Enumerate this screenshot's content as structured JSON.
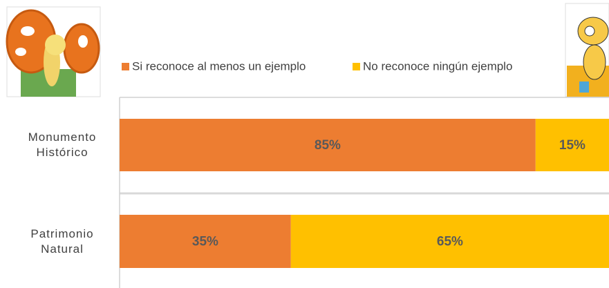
{
  "chart_data": {
    "type": "bar",
    "orientation": "horizontal",
    "stacked": true,
    "categories": [
      "Monumento Histórico",
      "Patrimonio Natural"
    ],
    "series": [
      {
        "name": "Si reconoce al menos un ejemplo",
        "color": "#ED7D31",
        "values": [
          85,
          35
        ],
        "value_labels": [
          "85%",
          "35%"
        ]
      },
      {
        "name": "No reconoce ningún ejemplo",
        "color": "#FFC000",
        "values": [
          15,
          65
        ],
        "value_labels": [
          "15%",
          "65%"
        ]
      }
    ],
    "xlim": [
      0,
      100
    ],
    "legend": "top"
  }
}
